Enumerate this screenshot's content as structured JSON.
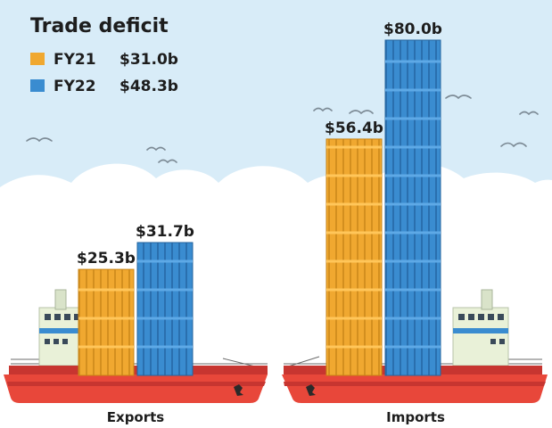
{
  "title": "Trade deficit",
  "legend": [
    {
      "label": "FY21",
      "value": "$31.0b",
      "color": "#f0a830"
    },
    {
      "label": "FY22",
      "value": "$48.3b",
      "color": "#3a8cd0"
    }
  ],
  "chart_data": {
    "type": "bar",
    "title": "Trade deficit",
    "categories": [
      "Exports",
      "Imports"
    ],
    "series": [
      {
        "name": "FY21",
        "values": [
          25.3,
          56.4
        ],
        "labels": [
          "$25.3b",
          "$56.4b"
        ],
        "color": "#f0a830"
      },
      {
        "name": "FY22",
        "values": [
          31.7,
          80.0
        ],
        "labels": [
          "$31.7b",
          "$80.0b"
        ],
        "color": "#3a8cd0"
      }
    ],
    "unit": "$ billion",
    "ylim": [
      0,
      80
    ],
    "grid": false,
    "legend_position": "top-left"
  },
  "colors": {
    "sky": "#d8ecf8",
    "cloud": "#ffffff",
    "hull": "#e8473a",
    "hull_dark": "#c73530",
    "cabin": "#e9f1d8",
    "orange": "#f0a830",
    "blue": "#3a8cd0"
  }
}
